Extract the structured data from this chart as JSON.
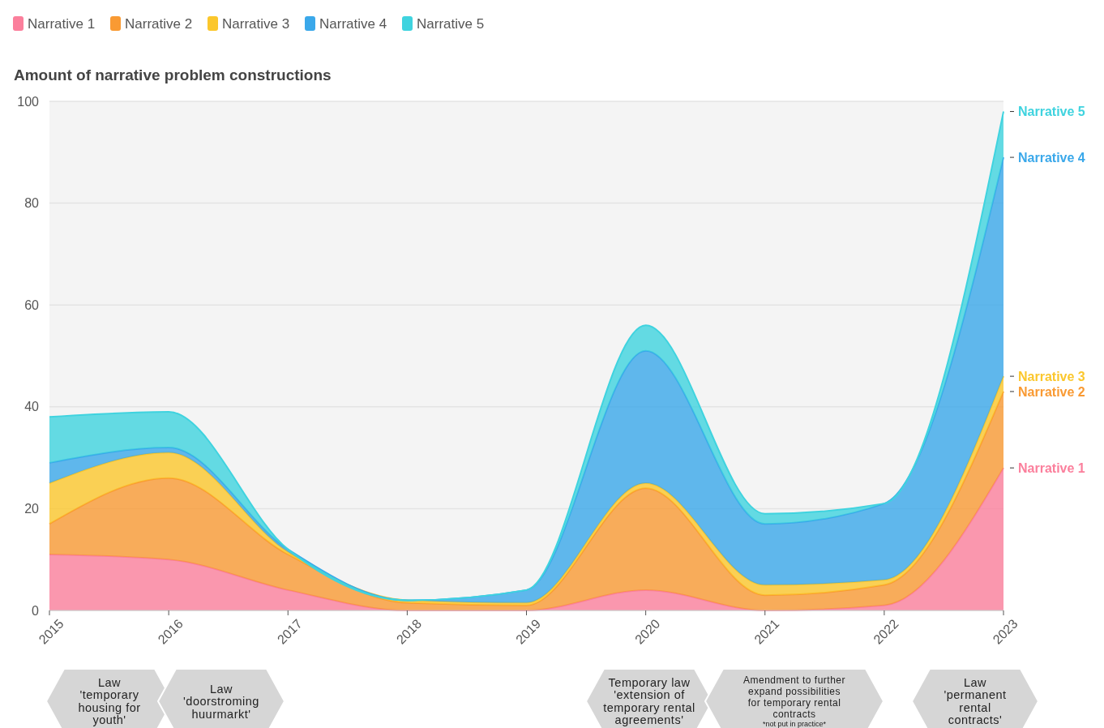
{
  "chart_data": {
    "type": "area",
    "stacked": true,
    "title": "Amount of narrative problem constructions",
    "x": [
      2015,
      2016,
      2017,
      2018,
      2019,
      2020,
      2021,
      2022,
      2023
    ],
    "xlim": [
      2015,
      2023
    ],
    "xticks": [
      2015,
      2016,
      2017,
      2018,
      2019,
      2020,
      2021,
      2022,
      2023
    ],
    "ylim": [
      0,
      100
    ],
    "yticks": [
      0,
      20,
      40,
      60,
      80,
      100
    ],
    "grid": "y",
    "legend": "top left",
    "series": [
      {
        "name": "Narrative 1",
        "color": "#fb7f9c",
        "values": [
          11,
          10,
          4,
          0,
          0,
          4,
          0,
          1,
          28
        ]
      },
      {
        "name": "Narrative 2",
        "color": "#f99a33",
        "values": [
          6,
          16,
          7,
          1.5,
          1,
          20,
          3,
          4,
          15
        ]
      },
      {
        "name": "Narrative 3",
        "color": "#fbc72c",
        "values": [
          8,
          5,
          0.5,
          0.5,
          0.5,
          1,
          2,
          1,
          3
        ]
      },
      {
        "name": "Narrative 4",
        "color": "#3aa8ea",
        "values": [
          4,
          1,
          0.5,
          0,
          2.5,
          26,
          12,
          15,
          43
        ]
      },
      {
        "name": "Narrative 5",
        "color": "#3fd3df",
        "values": [
          9,
          7,
          0,
          0,
          0,
          5,
          2,
          0,
          9
        ]
      }
    ],
    "annotations": [
      "Law 'temporary housing for youth'",
      "Law 'doorstroming huurmarkt'",
      "Temporary law 'extension of temporary rental agreements'",
      "Amendment to further expand possibilities for temporary rental contracts",
      "*not put in practice*",
      "Law 'permanent rental contracts'"
    ]
  }
}
